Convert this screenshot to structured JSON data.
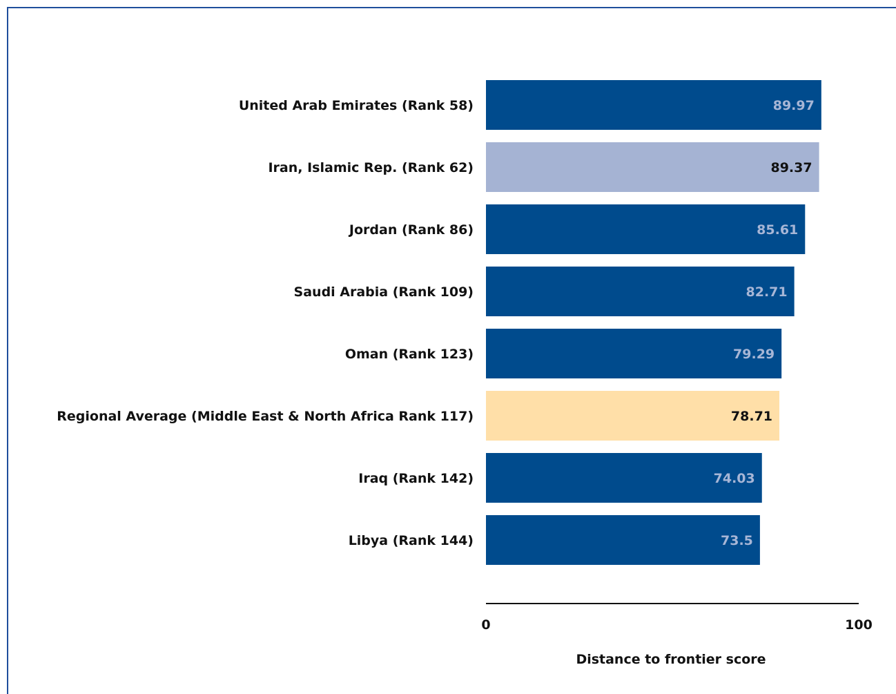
{
  "chart_data": {
    "type": "bar",
    "orientation": "horizontal",
    "categories": [
      "United Arab Emirates (Rank 58)",
      "Iran, Islamic Rep. (Rank 62)",
      "Jordan (Rank 86)",
      "Saudi Arabia (Rank 109)",
      "Oman (Rank 123)",
      "Regional Average (Middle East & North Africa Rank 117)",
      "Iraq (Rank 142)",
      "Libya (Rank 144)"
    ],
    "values": [
      89.97,
      89.37,
      85.61,
      82.71,
      79.29,
      78.71,
      74.03,
      73.5
    ],
    "value_labels": [
      "89.97",
      "89.37",
      "85.61",
      "82.71",
      "79.29",
      "78.71",
      "74.03",
      "73.5"
    ],
    "bar_colors": [
      "#004b8d",
      "#a5b3d3",
      "#004b8d",
      "#004b8d",
      "#004b8d",
      "#ffdfa8",
      "#004b8d",
      "#004b8d"
    ],
    "value_label_colors": [
      "#a7b6d6",
      "#111111",
      "#a7b6d6",
      "#a7b6d6",
      "#a7b6d6",
      "#111111",
      "#a7b6d6",
      "#a7b6d6"
    ],
    "xlim": [
      0,
      100
    ],
    "xticks": [
      "0",
      "100"
    ],
    "xlabel": "Distance to frontier score",
    "title": "",
    "grid": false,
    "legend": "none"
  },
  "colors": {
    "primary_bar": "#004b8d",
    "highlight_bar": "#a5b3d3",
    "regional_average_bar": "#ffdfa8",
    "frame": "#1f4e9c"
  }
}
